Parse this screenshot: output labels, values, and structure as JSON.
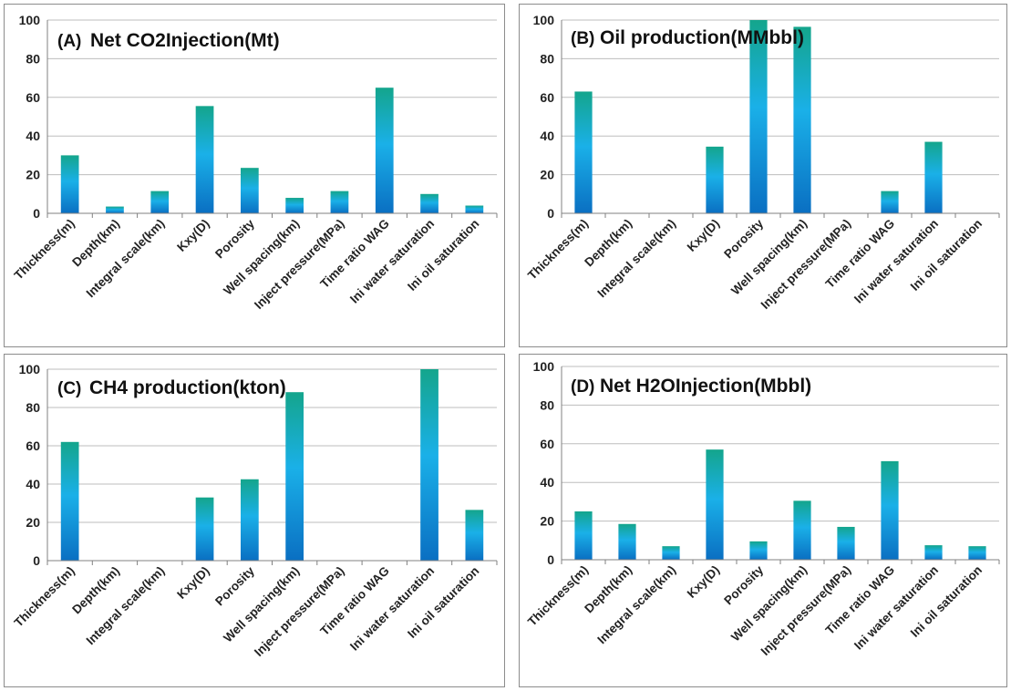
{
  "colors": {
    "bar_top": "#14a58c",
    "bar_mid": "#1ab0e8",
    "bar_bottom": "#0a6fc2",
    "grid": "#bdbdbd",
    "axis": "#808080"
  },
  "chart_data": [
    {
      "type": "bar",
      "panel_label": "(A)",
      "title": "Net CO2Injection(Mt)",
      "categories": [
        "Thickness(m)",
        "Depth(km)",
        "Integral scale(km)",
        "Kxy(D)",
        "Porosity",
        "Well spacing(km)",
        "Inject pressure(MPa)",
        "Time ratio WAG",
        "Ini water saturation",
        "Ini oil saturation"
      ],
      "values": [
        30,
        3.5,
        11.5,
        55.5,
        23.5,
        8,
        11.5,
        65,
        10,
        4
      ],
      "ylim": [
        0,
        100
      ],
      "yticks": [
        "0",
        "20",
        "40",
        "60",
        "80",
        "100"
      ],
      "grid": true,
      "legend": "none"
    },
    {
      "type": "bar",
      "panel_label": "(B)",
      "title": "Oil production(MMbbl)",
      "categories": [
        "Thickness(m)",
        "Depth(km)",
        "Integral scale(km)",
        "Kxy(D)",
        "Porosity",
        "Well spacing(km)",
        "Inject pressure(MPa)",
        "Time ratio WAG",
        "Ini water saturation",
        "Ini oil saturation"
      ],
      "values": [
        63,
        0,
        0,
        34.5,
        100,
        96.5,
        0,
        11.5,
        37,
        0
      ],
      "ylim": [
        0,
        100
      ],
      "yticks": [
        "0",
        "20",
        "40",
        "60",
        "80",
        "100"
      ],
      "grid": true,
      "legend": "none"
    },
    {
      "type": "bar",
      "panel_label": "(C)",
      "title": "CH4 production(kton)",
      "categories": [
        "Thickness(m)",
        "Depth(km)",
        "Integral scale(km)",
        "Kxy(D)",
        "Porosity",
        "Well spacing(km)",
        "Inject pressure(MPa)",
        "Time ratio WAG",
        "Ini water saturation",
        "Ini oil saturation"
      ],
      "values": [
        62,
        0,
        0,
        33,
        42.5,
        88,
        0,
        0,
        100,
        26.5
      ],
      "ylim": [
        0,
        100
      ],
      "yticks": [
        "0",
        "20",
        "40",
        "60",
        "80",
        "100"
      ],
      "grid": true,
      "legend": "none"
    },
    {
      "type": "bar",
      "panel_label": "(D)",
      "title": "Net H2OInjection(Mbbl)",
      "categories": [
        "Thickness(m)",
        "Depth(km)",
        "Integral scale(km)",
        "Kxy(D)",
        "Porosity",
        "Well spacing(km)",
        "Inject pressure(MPa)",
        "Time ratio WAG",
        "Ini water saturation",
        "Ini oil saturation"
      ],
      "values": [
        25,
        18.5,
        7,
        57,
        9.5,
        30.5,
        17,
        51,
        7.5,
        7
      ],
      "ylim": [
        0,
        100
      ],
      "yticks": [
        "0",
        "20",
        "40",
        "60",
        "80",
        "100"
      ],
      "grid": true,
      "legend": "none"
    }
  ]
}
